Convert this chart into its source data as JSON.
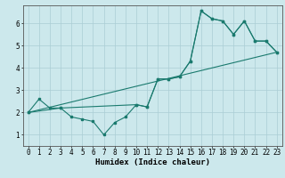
{
  "title": "",
  "xlabel": "Humidex (Indice chaleur)",
  "bg_color": "#cce8ec",
  "grid_color": "#aacdd4",
  "line_color": "#1a7a6e",
  "xlim": [
    -0.5,
    23.5
  ],
  "ylim": [
    0.5,
    6.8
  ],
  "xticks": [
    0,
    1,
    2,
    3,
    4,
    5,
    6,
    7,
    8,
    9,
    10,
    11,
    12,
    13,
    14,
    15,
    16,
    17,
    18,
    19,
    20,
    21,
    22,
    23
  ],
  "yticks": [
    1,
    2,
    3,
    4,
    5,
    6
  ],
  "line1_x": [
    0,
    1,
    2,
    3,
    4,
    5,
    6,
    7,
    8,
    9,
    10,
    11,
    12,
    13,
    14,
    15,
    16,
    17,
    18,
    19,
    20,
    21,
    22,
    23
  ],
  "line1_y": [
    2.0,
    2.6,
    2.2,
    2.2,
    1.8,
    1.7,
    1.6,
    1.0,
    1.55,
    1.8,
    2.35,
    2.25,
    3.5,
    3.5,
    3.6,
    4.3,
    6.55,
    6.2,
    6.1,
    5.5,
    6.1,
    5.2,
    5.2,
    4.7
  ],
  "line2_x": [
    0,
    3,
    10,
    11,
    12,
    13,
    14,
    15,
    16,
    17,
    18,
    19,
    20,
    21,
    22,
    23
  ],
  "line2_y": [
    2.0,
    2.2,
    2.35,
    2.25,
    3.5,
    3.5,
    3.6,
    4.3,
    6.55,
    6.2,
    6.1,
    5.5,
    6.1,
    5.2,
    5.2,
    4.7
  ],
  "line3_x": [
    0,
    23
  ],
  "line3_y": [
    2.0,
    4.7
  ],
  "tick_fontsize": 5.5,
  "xlabel_fontsize": 6.5,
  "marker_size": 1.8,
  "line_width": 0.8
}
